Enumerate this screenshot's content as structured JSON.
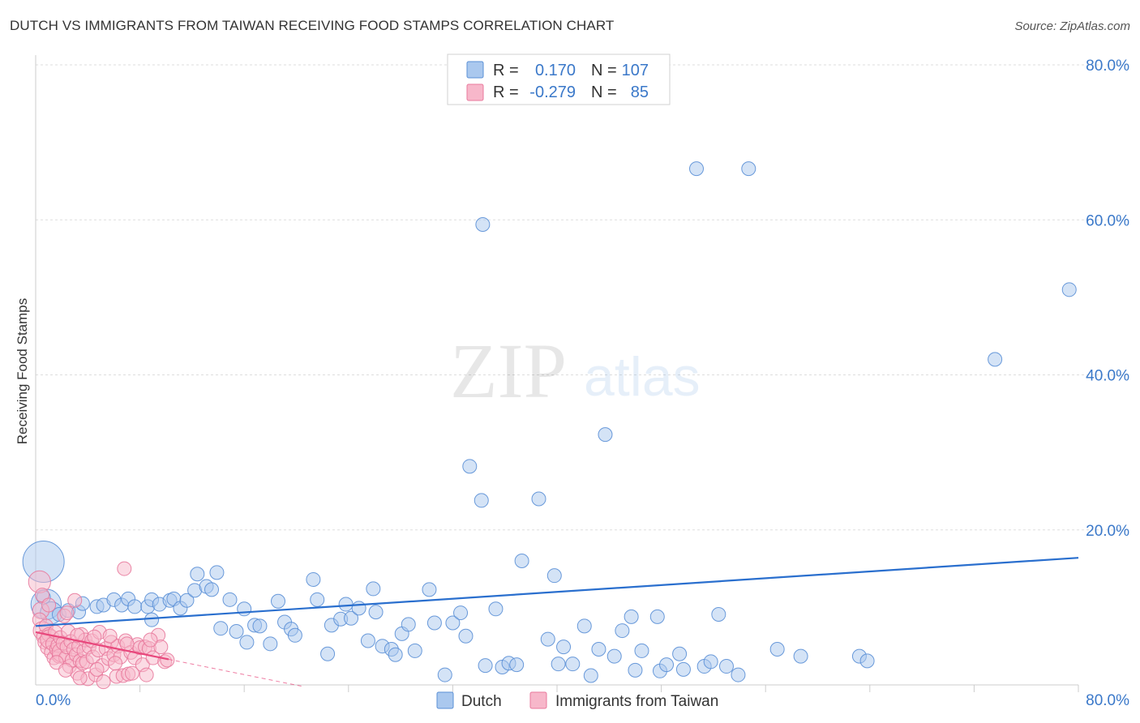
{
  "title": "DUTCH VS IMMIGRANTS FROM TAIWAN RECEIVING FOOD STAMPS CORRELATION CHART",
  "source": "Source: ZipAtlas.com",
  "watermark": {
    "zip": "ZIP",
    "atlas": "atlas"
  },
  "colors": {
    "dutch_fill": "#aac8ee",
    "dutch_stroke": "#5a8fd6",
    "dutch_line": "#2a6fce",
    "taiwan_fill": "#f7b7ca",
    "taiwan_stroke": "#e8799c",
    "taiwan_line": "#e8477c",
    "value_text": "#3a78c9",
    "grid": "#dddddd"
  },
  "legend_top": {
    "rows": [
      {
        "series": "Dutch",
        "r_label": "R =",
        "r_value": "0.170",
        "n_label": "N =",
        "n_value": "107"
      },
      {
        "series": "Immigrants from Taiwan",
        "r_label": "R =",
        "r_value": "-0.279",
        "n_label": "N =",
        "n_value": "85"
      }
    ]
  },
  "chart_data": {
    "type": "scatter",
    "title": "DUTCH VS IMMIGRANTS FROM TAIWAN RECEIVING FOOD STAMPS CORRELATION CHART",
    "ylabel": "Receiving Food Stamps",
    "xlabel": "",
    "xlim": [
      0,
      80
    ],
    "ylim": [
      0,
      80
    ],
    "x_tick_labels": [
      {
        "value": 0,
        "label": "0.0%"
      },
      {
        "value": 80,
        "label": "80.0%"
      }
    ],
    "y_tick_labels": [
      {
        "value": 20,
        "label": "20.0%"
      },
      {
        "value": 40,
        "label": "40.0%"
      },
      {
        "value": 60,
        "label": "60.0%"
      },
      {
        "value": 80,
        "label": "80.0%"
      }
    ],
    "legend": [
      "Dutch",
      "Immigrants from Taiwan"
    ],
    "series": [
      {
        "name": "Dutch",
        "r": 0.17,
        "n": 107,
        "trend": {
          "x0": 0,
          "y0": 7.6,
          "x1": 80,
          "y1": 16.4
        },
        "points": [
          [
            0.6,
            15.9,
            3
          ],
          [
            0.8,
            10.4,
            2.2
          ],
          [
            1.2,
            9.3,
            1.6
          ],
          [
            1.8,
            9.1,
            1
          ],
          [
            2.5,
            9.6,
            1
          ],
          [
            3.3,
            9.4,
            1
          ],
          [
            3.6,
            10.5,
            1
          ],
          [
            4.7,
            10.1,
            1
          ],
          [
            5.2,
            10.3,
            1
          ],
          [
            6.0,
            11.0,
            1
          ],
          [
            6.6,
            10.3,
            1
          ],
          [
            7.1,
            11.1,
            1
          ],
          [
            7.6,
            10.1,
            1
          ],
          [
            8.6,
            10.1,
            1
          ],
          [
            8.9,
            11.0,
            1
          ],
          [
            8.9,
            8.4,
            1
          ],
          [
            9.5,
            10.4,
            1
          ],
          [
            10.3,
            10.9,
            1
          ],
          [
            10.6,
            11.1,
            1
          ],
          [
            11.1,
            9.9,
            1
          ],
          [
            11.6,
            10.9,
            1
          ],
          [
            12.2,
            12.2,
            1
          ],
          [
            12.4,
            14.3,
            1
          ],
          [
            13.1,
            12.7,
            1
          ],
          [
            13.5,
            12.3,
            1
          ],
          [
            13.9,
            14.5,
            1
          ],
          [
            14.2,
            7.3,
            1
          ],
          [
            14.9,
            11.0,
            1
          ],
          [
            15.4,
            6.9,
            1
          ],
          [
            16.0,
            9.8,
            1
          ],
          [
            16.2,
            5.5,
            1
          ],
          [
            16.8,
            7.7,
            1
          ],
          [
            17.2,
            7.6,
            1
          ],
          [
            18.0,
            5.3,
            1
          ],
          [
            18.6,
            10.8,
            1
          ],
          [
            19.1,
            8.1,
            1
          ],
          [
            19.6,
            7.2,
            1
          ],
          [
            19.9,
            6.4,
            1
          ],
          [
            21.3,
            13.6,
            1
          ],
          [
            21.6,
            11.0,
            1
          ],
          [
            22.4,
            4.0,
            1
          ],
          [
            22.7,
            7.7,
            1
          ],
          [
            23.4,
            8.5,
            1
          ],
          [
            23.8,
            10.4,
            1
          ],
          [
            24.2,
            8.6,
            1
          ],
          [
            24.8,
            9.9,
            1
          ],
          [
            25.5,
            5.7,
            1
          ],
          [
            25.9,
            12.4,
            1
          ],
          [
            26.1,
            9.4,
            1
          ],
          [
            26.6,
            5.0,
            1
          ],
          [
            27.3,
            4.6,
            1
          ],
          [
            27.6,
            3.9,
            1
          ],
          [
            28.1,
            6.6,
            1
          ],
          [
            28.6,
            7.8,
            1
          ],
          [
            29.1,
            4.4,
            1
          ],
          [
            30.2,
            12.3,
            1
          ],
          [
            30.6,
            8.0,
            1
          ],
          [
            31.4,
            1.3,
            1
          ],
          [
            32.0,
            8.0,
            1
          ],
          [
            32.6,
            9.3,
            1
          ],
          [
            33.0,
            6.3,
            1
          ],
          [
            33.3,
            28.2,
            1
          ],
          [
            34.2,
            23.8,
            1
          ],
          [
            34.3,
            59.4,
            1
          ],
          [
            34.5,
            2.5,
            1
          ],
          [
            35.3,
            9.8,
            1
          ],
          [
            35.8,
            2.3,
            1
          ],
          [
            36.3,
            2.8,
            1
          ],
          [
            36.9,
            2.6,
            1
          ],
          [
            37.3,
            16.0,
            1
          ],
          [
            38.6,
            24.0,
            1
          ],
          [
            39.3,
            5.9,
            1
          ],
          [
            39.8,
            14.1,
            1
          ],
          [
            40.1,
            2.7,
            1
          ],
          [
            40.5,
            4.9,
            1
          ],
          [
            41.2,
            2.7,
            1
          ],
          [
            42.1,
            7.6,
            1
          ],
          [
            42.6,
            1.2,
            1
          ],
          [
            43.2,
            4.6,
            1
          ],
          [
            43.7,
            32.3,
            1
          ],
          [
            44.4,
            3.7,
            1
          ],
          [
            45.0,
            7.0,
            1
          ],
          [
            45.7,
            8.8,
            1
          ],
          [
            46.0,
            1.9,
            1
          ],
          [
            46.5,
            4.4,
            1
          ],
          [
            47.7,
            8.8,
            1
          ],
          [
            47.9,
            1.8,
            1
          ],
          [
            48.4,
            2.6,
            1
          ],
          [
            49.4,
            4.0,
            1
          ],
          [
            49.7,
            2.0,
            1
          ],
          [
            50.7,
            66.6,
            1
          ],
          [
            51.3,
            2.4,
            1
          ],
          [
            51.8,
            3.0,
            1
          ],
          [
            52.4,
            9.1,
            1
          ],
          [
            53.0,
            2.4,
            1
          ],
          [
            53.9,
            1.3,
            1
          ],
          [
            54.7,
            66.6,
            1
          ],
          [
            56.9,
            4.6,
            1
          ],
          [
            58.7,
            3.7,
            1
          ],
          [
            63.2,
            3.7,
            1
          ],
          [
            63.8,
            3.1,
            1
          ],
          [
            73.6,
            42.0,
            1
          ],
          [
            79.3,
            51.0,
            1
          ],
          [
            0.6,
            11.3,
            1
          ]
        ]
      },
      {
        "name": "Immigrants from Taiwan",
        "r": -0.279,
        "n": 85,
        "trend": {
          "x0": 0,
          "y0": 6.8,
          "x1": 10.2,
          "y1": 3.3
        },
        "trend_dashed": {
          "x0": 10.2,
          "y0": 3.3,
          "x1": 20.5,
          "y1": -0.2
        },
        "points": [
          [
            0.3,
            13.3,
            1.6
          ],
          [
            0.4,
            9.6,
            1.2
          ],
          [
            0.3,
            8.4,
            1
          ],
          [
            0.5,
            7.0,
            1.3
          ],
          [
            0.6,
            6.2,
            1
          ],
          [
            0.7,
            5.5,
            1
          ],
          [
            0.8,
            7.6,
            1
          ],
          [
            0.9,
            4.8,
            1
          ],
          [
            1.0,
            6.5,
            1
          ],
          [
            1.1,
            5.9,
            1.4
          ],
          [
            1.2,
            4.2,
            1
          ],
          [
            1.3,
            5.3,
            1
          ],
          [
            1.4,
            3.5,
            1
          ],
          [
            1.5,
            6.8,
            1
          ],
          [
            1.6,
            4.6,
            1
          ],
          [
            1.7,
            5.1,
            1
          ],
          [
            1.8,
            3.7,
            1
          ],
          [
            1.9,
            6.1,
            1
          ],
          [
            2.0,
            4.2,
            1.4
          ],
          [
            2.1,
            5.4,
            1
          ],
          [
            2.2,
            8.9,
            1
          ],
          [
            2.3,
            3.5,
            1
          ],
          [
            2.4,
            4.9,
            1
          ],
          [
            2.5,
            6.9,
            1
          ],
          [
            2.6,
            2.4,
            1
          ],
          [
            2.7,
            5.6,
            1
          ],
          [
            2.8,
            3.2,
            1
          ],
          [
            2.9,
            4.6,
            1
          ],
          [
            3.0,
            10.9,
            1
          ],
          [
            3.1,
            3.9,
            1
          ],
          [
            3.2,
            1.5,
            1
          ],
          [
            3.3,
            5.0,
            1
          ],
          [
            3.4,
            3.1,
            1
          ],
          [
            3.5,
            6.5,
            1
          ],
          [
            3.6,
            2.8,
            1
          ],
          [
            3.7,
            4.4,
            1
          ],
          [
            3.8,
            5.8,
            1
          ],
          [
            3.9,
            3.0,
            1
          ],
          [
            4.0,
            0.8,
            1
          ],
          [
            4.1,
            4.9,
            1
          ],
          [
            4.3,
            5.7,
            1
          ],
          [
            4.4,
            3.6,
            1
          ],
          [
            4.6,
            1.3,
            1
          ],
          [
            4.8,
            4.5,
            1
          ],
          [
            4.9,
            6.8,
            1
          ],
          [
            5.1,
            2.5,
            1
          ],
          [
            5.2,
            0.4,
            1
          ],
          [
            5.4,
            4.7,
            1
          ],
          [
            5.6,
            3.4,
            1
          ],
          [
            5.8,
            5.5,
            1
          ],
          [
            6.0,
            3.9,
            1
          ],
          [
            6.2,
            1.1,
            1
          ],
          [
            6.3,
            5.0,
            1
          ],
          [
            6.5,
            3.6,
            1
          ],
          [
            6.7,
            1.2,
            1
          ],
          [
            6.8,
            15.0,
            1
          ],
          [
            6.9,
            5.7,
            1
          ],
          [
            7.1,
            1.4,
            1
          ],
          [
            7.3,
            4.2,
            1
          ],
          [
            7.4,
            1.5,
            1
          ],
          [
            7.6,
            3.5,
            1
          ],
          [
            7.8,
            5.2,
            1
          ],
          [
            8.0,
            4.8,
            1
          ],
          [
            8.2,
            2.6,
            1
          ],
          [
            8.4,
            4.9,
            1
          ],
          [
            8.5,
            1.3,
            1
          ],
          [
            8.7,
            4.7,
            1
          ],
          [
            9.0,
            3.5,
            1
          ],
          [
            9.4,
            6.4,
            1
          ],
          [
            9.6,
            4.9,
            1
          ],
          [
            9.9,
            3.0,
            1
          ],
          [
            10.1,
            3.2,
            1
          ],
          [
            0.5,
            11.6,
            1
          ],
          [
            1.0,
            10.3,
            1
          ],
          [
            2.4,
            9.3,
            1
          ],
          [
            3.2,
            6.4,
            1
          ],
          [
            4.5,
            6.2,
            1
          ],
          [
            5.7,
            6.3,
            1
          ],
          [
            7.0,
            5.3,
            1
          ],
          [
            1.6,
            2.9,
            1
          ],
          [
            2.3,
            1.9,
            1
          ],
          [
            3.4,
            0.9,
            1
          ],
          [
            4.7,
            2.0,
            1
          ],
          [
            6.1,
            2.8,
            1
          ],
          [
            8.8,
            5.8,
            1
          ]
        ]
      }
    ]
  }
}
